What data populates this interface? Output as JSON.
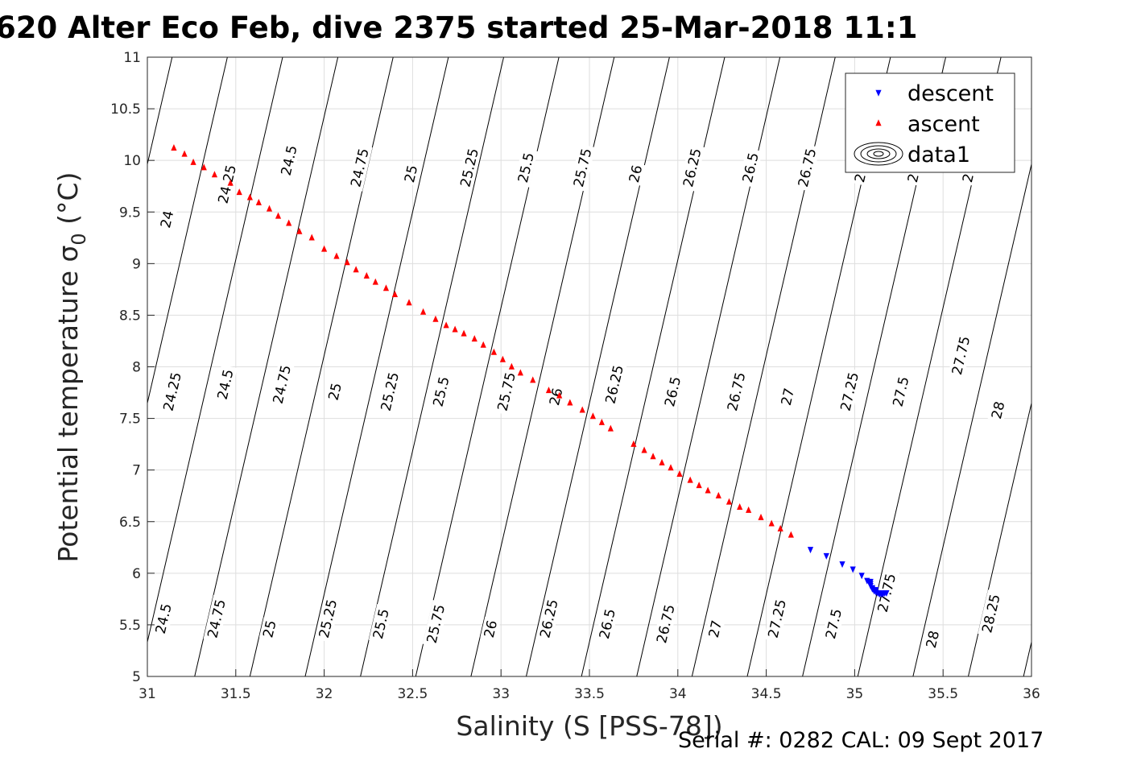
{
  "chart_data": {
    "type": "scatter",
    "title": "620 Alter Eco Feb, dive 2375 started 25-Mar-2018 11:1",
    "xlabel": "Salinity (S [PSS-78])",
    "ylabel_main": "Potential temperature σ",
    "ylabel_sub": "0",
    "ylabel_unit": " (°C)",
    "xlim": [
      31,
      36
    ],
    "ylim": [
      5,
      11
    ],
    "xticks": [
      "31",
      "31.5",
      "32",
      "32.5",
      "33",
      "33.5",
      "34",
      "34.5",
      "35",
      "35.5",
      "36"
    ],
    "yticks": [
      "5",
      "5.5",
      "6",
      "6.5",
      "7",
      "7.5",
      "8",
      "8.5",
      "9",
      "9.5",
      "10",
      "10.5",
      "11"
    ],
    "grid": true,
    "legend_position": "top-right",
    "series": [
      {
        "name": "descent",
        "marker": "triangle-down",
        "color": "#0000ff",
        "points": [
          [
            34.75,
            6.23
          ],
          [
            34.84,
            6.17
          ],
          [
            34.93,
            6.09
          ],
          [
            34.99,
            6.04
          ],
          [
            35.04,
            5.98
          ],
          [
            35.07,
            5.93
          ],
          [
            35.08,
            5.92
          ],
          [
            35.09,
            5.9
          ],
          [
            35.09,
            5.88
          ],
          [
            35.1,
            5.86
          ],
          [
            35.1,
            5.85
          ],
          [
            35.11,
            5.84
          ],
          [
            35.11,
            5.83
          ],
          [
            35.12,
            5.82
          ],
          [
            35.13,
            5.81
          ],
          [
            35.14,
            5.8
          ],
          [
            35.15,
            5.8
          ],
          [
            35.16,
            5.8
          ],
          [
            35.17,
            5.81
          ],
          [
            35.18,
            5.81
          ],
          [
            35.09,
            5.92
          ],
          [
            35.12,
            5.84
          ],
          [
            35.14,
            5.81
          ]
        ]
      },
      {
        "name": "ascent",
        "marker": "triangle-up",
        "color": "#ff0000",
        "points": [
          [
            31.15,
            10.12
          ],
          [
            31.21,
            10.06
          ],
          [
            31.26,
            9.98
          ],
          [
            31.32,
            9.93
          ],
          [
            31.38,
            9.86
          ],
          [
            31.47,
            9.78
          ],
          [
            31.52,
            9.69
          ],
          [
            31.58,
            9.64
          ],
          [
            31.63,
            9.59
          ],
          [
            31.69,
            9.53
          ],
          [
            31.74,
            9.46
          ],
          [
            31.8,
            9.39
          ],
          [
            31.86,
            9.31
          ],
          [
            31.93,
            9.25
          ],
          [
            32.0,
            9.14
          ],
          [
            32.07,
            9.07
          ],
          [
            32.13,
            9.01
          ],
          [
            32.18,
            8.94
          ],
          [
            32.24,
            8.88
          ],
          [
            32.29,
            8.82
          ],
          [
            32.35,
            8.76
          ],
          [
            32.4,
            8.7
          ],
          [
            32.48,
            8.62
          ],
          [
            32.56,
            8.53
          ],
          [
            32.63,
            8.46
          ],
          [
            32.69,
            8.4
          ],
          [
            32.74,
            8.36
          ],
          [
            32.79,
            8.32
          ],
          [
            32.85,
            8.27
          ],
          [
            32.9,
            8.21
          ],
          [
            32.96,
            8.14
          ],
          [
            33.01,
            8.07
          ],
          [
            33.06,
            8.0
          ],
          [
            33.11,
            7.94
          ],
          [
            33.18,
            7.87
          ],
          [
            33.27,
            7.77
          ],
          [
            33.33,
            7.72
          ],
          [
            33.39,
            7.65
          ],
          [
            33.46,
            7.58
          ],
          [
            33.52,
            7.52
          ],
          [
            33.57,
            7.46
          ],
          [
            33.62,
            7.4
          ],
          [
            33.75,
            7.25
          ],
          [
            33.81,
            7.19
          ],
          [
            33.86,
            7.13
          ],
          [
            33.91,
            7.07
          ],
          [
            33.96,
            7.02
          ],
          [
            34.01,
            6.96
          ],
          [
            34.07,
            6.9
          ],
          [
            34.12,
            6.85
          ],
          [
            34.17,
            6.8
          ],
          [
            34.23,
            6.75
          ],
          [
            34.29,
            6.69
          ],
          [
            34.35,
            6.64
          ],
          [
            34.4,
            6.61
          ],
          [
            34.47,
            6.54
          ],
          [
            34.53,
            6.48
          ],
          [
            34.58,
            6.43
          ],
          [
            34.64,
            6.37
          ]
        ]
      },
      {
        "name": "data1",
        "marker": "contour",
        "color": "#000000",
        "contour_levels": [
          "24",
          "24.25",
          "24.5",
          "24.75",
          "25",
          "25.25",
          "25.5",
          "25.75",
          "26",
          "26.25",
          "26.5",
          "26.75",
          "27",
          "27.25",
          "27.5",
          "27.75",
          "28",
          "28.25"
        ],
        "top_labels": [
          {
            "text": "24",
            "s": 31.11,
            "t": 9.43
          },
          {
            "text": "24.25",
            "s": 31.45,
            "t": 9.77
          },
          {
            "text": "24.5",
            "s": 31.8,
            "t": 10.0
          },
          {
            "text": "24.75",
            "s": 32.2,
            "t": 9.93
          },
          {
            "text": "25",
            "s": 32.49,
            "t": 9.87
          },
          {
            "text": "25.25",
            "s": 32.82,
            "t": 9.93
          },
          {
            "text": "25.5",
            "s": 33.14,
            "t": 9.93
          },
          {
            "text": "25.75",
            "s": 33.46,
            "t": 9.93
          },
          {
            "text": "26",
            "s": 33.76,
            "t": 9.87
          },
          {
            "text": "26.25",
            "s": 34.08,
            "t": 9.93
          },
          {
            "text": "26.5",
            "s": 34.41,
            "t": 9.93
          },
          {
            "text": "26.75",
            "s": 34.73,
            "t": 9.93
          },
          {
            "text": "2",
            "s": 35.03,
            "t": 9.83
          },
          {
            "text": "2",
            "s": 35.33,
            "t": 9.83
          },
          {
            "text": "2",
            "s": 35.64,
            "t": 9.83
          }
        ],
        "mid_labels": [
          {
            "text": "24.25",
            "s": 31.14,
            "t": 7.76
          },
          {
            "text": "24.5",
            "s": 31.44,
            "t": 7.83
          },
          {
            "text": "24.75",
            "s": 31.76,
            "t": 7.83
          },
          {
            "text": "25",
            "s": 32.06,
            "t": 7.76
          },
          {
            "text": "25.25",
            "s": 32.37,
            "t": 7.76
          },
          {
            "text": "25.5",
            "s": 32.66,
            "t": 7.76
          },
          {
            "text": "25.75",
            "s": 33.03,
            "t": 7.76
          },
          {
            "text": "26",
            "s": 33.31,
            "t": 7.71
          },
          {
            "text": "26.25",
            "s": 33.64,
            "t": 7.83
          },
          {
            "text": "26.5",
            "s": 33.97,
            "t": 7.76
          },
          {
            "text": "26.75",
            "s": 34.33,
            "t": 7.76
          },
          {
            "text": "27",
            "s": 34.62,
            "t": 7.71
          },
          {
            "text": "27.25",
            "s": 34.97,
            "t": 7.76
          },
          {
            "text": "27.5",
            "s": 35.26,
            "t": 7.76
          },
          {
            "text": "27.75",
            "s": 35.6,
            "t": 8.11
          },
          {
            "text": "28",
            "s": 35.81,
            "t": 7.58
          }
        ],
        "bottom_labels": [
          {
            "text": "24.5",
            "s": 31.09,
            "t": 5.56
          },
          {
            "text": "24.75",
            "s": 31.39,
            "t": 5.56
          },
          {
            "text": "25",
            "s": 31.69,
            "t": 5.46
          },
          {
            "text": "25.25",
            "s": 32.02,
            "t": 5.56
          },
          {
            "text": "25.5",
            "s": 32.32,
            "t": 5.51
          },
          {
            "text": "25.75",
            "s": 32.63,
            "t": 5.51
          },
          {
            "text": "26",
            "s": 32.94,
            "t": 5.46
          },
          {
            "text": "26.25",
            "s": 33.27,
            "t": 5.56
          },
          {
            "text": "26.5",
            "s": 33.6,
            "t": 5.51
          },
          {
            "text": "26.75",
            "s": 33.93,
            "t": 5.51
          },
          {
            "text": "27",
            "s": 34.21,
            "t": 5.46
          },
          {
            "text": "27.25",
            "s": 34.56,
            "t": 5.56
          },
          {
            "text": "27.5",
            "s": 34.88,
            "t": 5.51
          },
          {
            "text": "27.75",
            "s": 35.18,
            "t": 5.81
          },
          {
            "text": "28",
            "s": 35.44,
            "t": 5.36
          },
          {
            "text": "28.25",
            "s": 35.77,
            "t": 5.61
          }
        ]
      }
    ],
    "legend": [
      "descent",
      "ascent",
      "data1"
    ]
  },
  "footer": "Serial #: 0282  CAL: 09 Sept 2017"
}
